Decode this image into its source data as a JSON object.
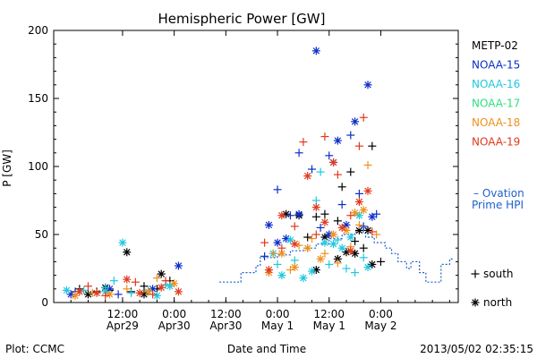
{
  "chart_data": {
    "type": "scatter",
    "title": "Hemispheric Power [GW]",
    "ylabel": "P [GW]",
    "xlabel": "Date and Time",
    "ylim": [
      0,
      200
    ],
    "xlim_hours": [
      0,
      94
    ],
    "y_ticks": [
      "0",
      "50",
      "100",
      "150",
      "200"
    ],
    "x_ticks": [
      {
        "t": 16,
        "line1": "12:00",
        "line2": "Apr29"
      },
      {
        "t": 28,
        "line1": "0:00",
        "line2": "Apr30"
      },
      {
        "t": 40,
        "line1": "12:00",
        "line2": "Apr30"
      },
      {
        "t": 52,
        "line1": "0:00",
        "line2": "May 1"
      },
      {
        "t": 64,
        "line1": "12:00",
        "line2": "May 1"
      },
      {
        "t": 76,
        "line1": "0:00",
        "line2": "May 2"
      }
    ],
    "footer": {
      "left": "Plot: CCMC",
      "right": "2013/05/02 02:35:15"
    },
    "legend_position": "right",
    "symbol_legend": [
      {
        "symbol": "+",
        "label": "south"
      },
      {
        "symbol": "*",
        "label": "north"
      }
    ],
    "ovation": {
      "label_line1": "– Ovation",
      "label_line2": "Prime HPI",
      "color": "#1f5fd0",
      "x": [
        38.5,
        40,
        40,
        43.5,
        43.5,
        47,
        47,
        48,
        48,
        52,
        52,
        55,
        55,
        58,
        58,
        61,
        61,
        64,
        64,
        67,
        67,
        70,
        70,
        72.5,
        72.5,
        74.5,
        74.5,
        77,
        77,
        78.5,
        78.5,
        80,
        80,
        82,
        82,
        83,
        83,
        85,
        85,
        86.5,
        86.5,
        90,
        90,
        92,
        92,
        93
      ],
      "y": [
        15,
        15,
        15,
        15,
        22,
        22,
        27,
        27,
        33,
        33,
        35,
        35,
        38,
        38,
        40,
        40,
        43,
        43,
        47,
        47,
        50,
        50,
        52,
        52,
        48,
        48,
        44,
        44,
        40,
        40,
        36,
        36,
        30,
        30,
        25,
        25,
        30,
        30,
        22,
        22,
        15,
        15,
        28,
        28,
        32,
        32
      ]
    },
    "series": [
      {
        "name": "METP-02",
        "color": "#000000",
        "south": [
          [
            6,
            10
          ],
          [
            10,
            8
          ],
          [
            13,
            9
          ],
          [
            18,
            8
          ],
          [
            21,
            12
          ],
          [
            24,
            10
          ],
          [
            27,
            16
          ],
          [
            59,
            48
          ],
          [
            61,
            63
          ],
          [
            63,
            65
          ],
          [
            66,
            60
          ],
          [
            67,
            85
          ],
          [
            69,
            96
          ],
          [
            70,
            45
          ],
          [
            72,
            40
          ],
          [
            74,
            115
          ],
          [
            76,
            30
          ]
        ],
        "north": [
          [
            8,
            6
          ],
          [
            12,
            11
          ],
          [
            17,
            37
          ],
          [
            21,
            6
          ],
          [
            25,
            21
          ],
          [
            54,
            65
          ],
          [
            57,
            64
          ],
          [
            61,
            24
          ],
          [
            63,
            48
          ],
          [
            66,
            32
          ],
          [
            68,
            37
          ],
          [
            70,
            36
          ],
          [
            71,
            53
          ],
          [
            73,
            53
          ],
          [
            74,
            28
          ]
        ]
      },
      {
        "name": "NOAA-15",
        "color": "#0b2ec8",
        "south": [
          [
            5,
            8
          ],
          [
            15,
            6
          ],
          [
            49,
            34
          ],
          [
            52,
            83
          ],
          [
            55,
            64
          ],
          [
            57,
            110
          ],
          [
            60,
            98
          ],
          [
            62,
            55
          ],
          [
            64,
            108
          ],
          [
            67,
            72
          ],
          [
            69,
            123
          ],
          [
            71,
            80
          ],
          [
            72,
            56
          ],
          [
            75,
            65
          ]
        ],
        "north": [
          [
            4,
            6
          ],
          [
            13,
            10
          ],
          [
            23,
            10
          ],
          [
            29,
            27
          ],
          [
            50,
            57
          ],
          [
            52,
            44
          ],
          [
            54,
            47
          ],
          [
            57,
            65
          ],
          [
            61,
            185
          ],
          [
            64,
            50
          ],
          [
            65,
            103
          ],
          [
            66,
            119
          ],
          [
            68,
            57
          ],
          [
            70,
            133
          ],
          [
            73,
            160
          ],
          [
            74,
            63
          ]
        ]
      },
      {
        "name": "NOAA-16",
        "color": "#1ec8e0",
        "south": [
          [
            7,
            9
          ],
          [
            12,
            11
          ],
          [
            14,
            16
          ],
          [
            18,
            7
          ],
          [
            22,
            9
          ],
          [
            26,
            13
          ],
          [
            52,
            28
          ],
          [
            56,
            31
          ],
          [
            59,
            40
          ],
          [
            61,
            75
          ],
          [
            62,
            96
          ],
          [
            64,
            28
          ],
          [
            66,
            46
          ],
          [
            68,
            25
          ],
          [
            70,
            22
          ],
          [
            72,
            33
          ]
        ],
        "north": [
          [
            3,
            9
          ],
          [
            12,
            8
          ],
          [
            16,
            44
          ],
          [
            24,
            5
          ],
          [
            27,
            12
          ],
          [
            51,
            36
          ],
          [
            53,
            20
          ],
          [
            55,
            46
          ],
          [
            58,
            18
          ],
          [
            60,
            23
          ],
          [
            63,
            44
          ],
          [
            65,
            43
          ],
          [
            67,
            40
          ],
          [
            69,
            48
          ],
          [
            71,
            64
          ],
          [
            73,
            26
          ]
        ]
      },
      {
        "name": "NOAA-17",
        "color": "#2ee080",
        "south": [],
        "north": []
      },
      {
        "name": "NOAA-18",
        "color": "#f0901e",
        "south": [
          [
            9,
            7
          ],
          [
            17,
            10
          ],
          [
            24,
            18
          ],
          [
            51,
            36
          ],
          [
            55,
            24
          ],
          [
            57,
            42
          ],
          [
            60,
            47
          ],
          [
            63,
            36
          ],
          [
            66,
            29
          ],
          [
            69,
            41
          ],
          [
            71,
            57
          ],
          [
            73,
            101
          ],
          [
            75,
            50
          ]
        ],
        "north": [
          [
            5,
            5
          ],
          [
            13,
            6
          ],
          [
            22,
            8
          ],
          [
            28,
            14
          ],
          [
            50,
            22
          ],
          [
            53,
            36
          ],
          [
            56,
            26
          ],
          [
            59,
            40
          ],
          [
            62,
            32
          ],
          [
            65,
            50
          ],
          [
            68,
            53
          ],
          [
            70,
            66
          ],
          [
            72,
            68
          ]
        ]
      },
      {
        "name": "NOAA-19",
        "color": "#e03a1e",
        "south": [
          [
            8,
            12
          ],
          [
            12,
            5
          ],
          [
            19,
            15
          ],
          [
            23,
            6
          ],
          [
            26,
            16
          ],
          [
            49,
            44
          ],
          [
            53,
            40
          ],
          [
            56,
            56
          ],
          [
            58,
            118
          ],
          [
            61,
            50
          ],
          [
            63,
            122
          ],
          [
            66,
            94
          ],
          [
            69,
            64
          ],
          [
            71,
            115
          ],
          [
            72,
            136
          ],
          [
            74,
            52
          ]
        ],
        "north": [
          [
            6,
            8
          ],
          [
            10,
            7
          ],
          [
            17,
            17
          ],
          [
            20,
            7
          ],
          [
            25,
            11
          ],
          [
            29,
            8
          ],
          [
            50,
            24
          ],
          [
            53,
            64
          ],
          [
            56,
            43
          ],
          [
            59,
            93
          ],
          [
            61,
            70
          ],
          [
            63,
            59
          ],
          [
            65,
            103
          ],
          [
            67,
            55
          ],
          [
            69,
            38
          ],
          [
            71,
            74
          ],
          [
            73,
            82
          ]
        ]
      }
    ]
  }
}
